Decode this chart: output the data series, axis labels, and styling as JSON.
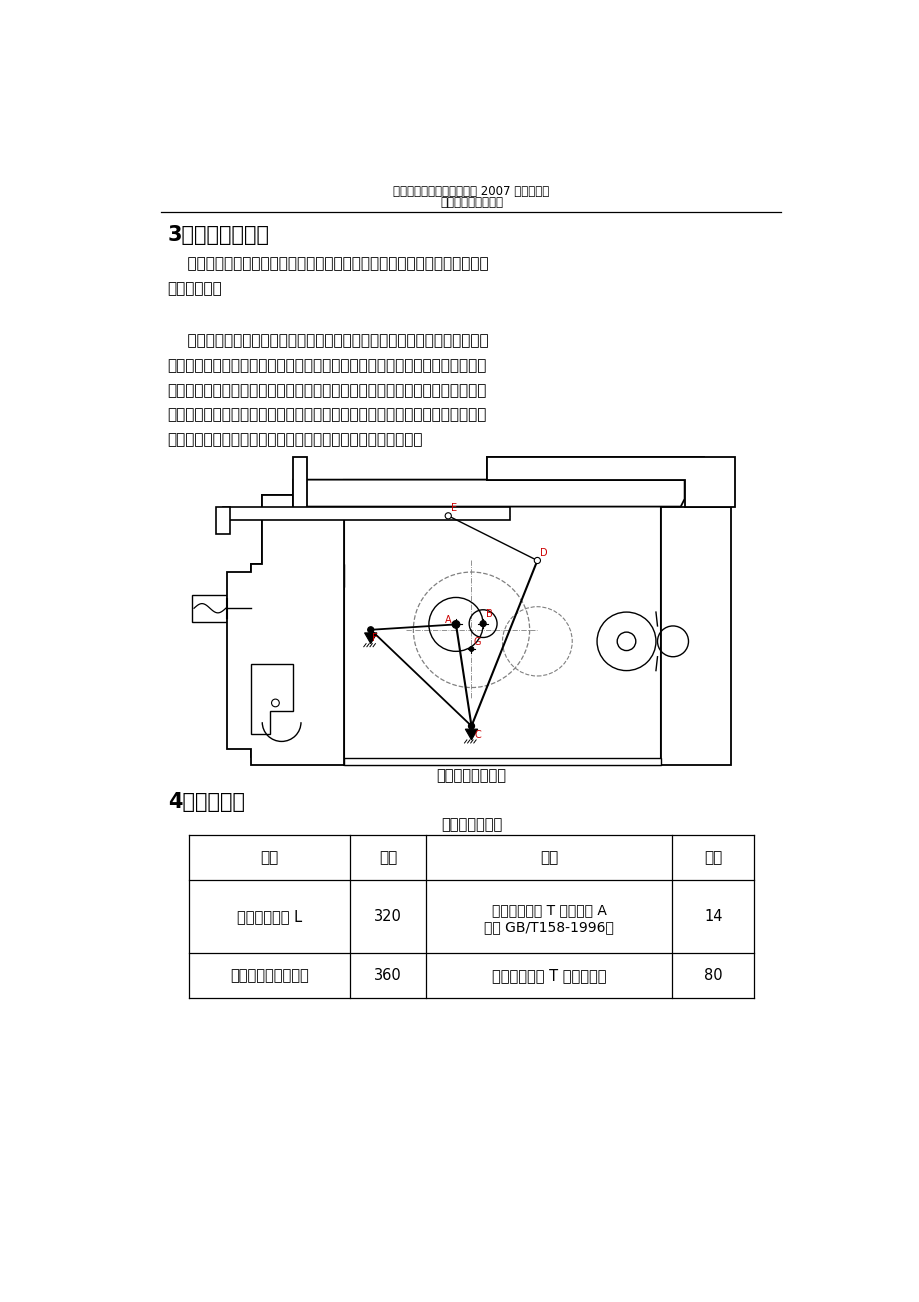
{
  "header_line1": "西安工业大学机电工程学院 2007 级课程设计",
  "header_line2": "牛头全床设计说明书",
  "section3_title": "3）牛头全床简介",
  "para1_line1": "    牛头全床是用于加工中小尺寸的平面或直槽的金属切削机床，多用于单件或",
  "para1_line2": "小批量生产。",
  "para2_line1": "    为了适用不同材料和不同尺寸工件的粗、精加工，要求主执行构件一全刀能",
  "para2_line2": "以数种不同速度、不同行程和不同起始位置作水平往复直线移动，且切削时全刀",
  "para2_line3": "的移动速度低于空行程速度，即全刀具有急回现象。全刀可随小刀架作不同进给",
  "para2_line4": "量的垂直进给；安装工件的工作台应具有不同进给量的横向进给，以完成平面的",
  "para2_line5": "加工，工作台还应具有升降功能，以适应不同高度的工件加工。",
  "fig_caption": "牛头全床机构简图",
  "section4_title": "4）参数设计",
  "table_title": "牛头全床参数表",
  "col0_h": "名称",
  "col1_h": "参数",
  "col2_h": "名称",
  "col3_h": "参数",
  "r1c0": "最大全削长度 L",
  "r1c1": "320",
  "r1c2a": "工作台上平面 T 形抝宽度 A",
  "r1c2b": "（按 GB/T158-1996）",
  "r1c3": "14",
  "r2c0": "工作台最大横向行程",
  "r2c1": "360",
  "r2c2": "工作台上平面 T 形捭中心距",
  "r2c3": "80",
  "bg_color": "#ffffff",
  "text_color": "#000000"
}
